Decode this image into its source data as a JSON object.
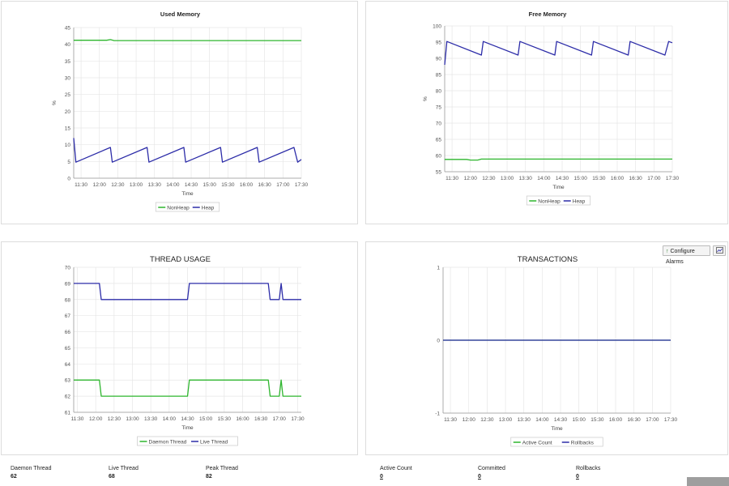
{
  "colors": {
    "green": "#2db52d",
    "blue": "#2c2ca8",
    "grid": "#e6e6e6",
    "axis": "#999999"
  },
  "toolbar": {
    "configure_alarms_label": "Configure Alarms",
    "alarm_icon": "alarm-icon",
    "export_icon": "chart-export-icon"
  },
  "stats": {
    "daemon_thread": {
      "label": "Daemon Thread",
      "value": "62"
    },
    "live_thread": {
      "label": "Live Thread",
      "value": "68"
    },
    "peak_thread": {
      "label": "Peak Thread",
      "value": "82"
    },
    "active_count": {
      "label": "Active Count",
      "value": "0"
    },
    "committed": {
      "label": "Committed",
      "value": "0"
    },
    "rollbacks": {
      "label": "Rollbacks",
      "value": "0"
    }
  },
  "chart_data": [
    {
      "id": "used",
      "type": "line",
      "title": "Used Memory",
      "title_bold": true,
      "xlabel": "Time",
      "ylabel": "%",
      "ylim": [
        0,
        45
      ],
      "yticks": [
        0,
        5,
        10,
        15,
        20,
        25,
        30,
        35,
        40,
        45
      ],
      "xlim": [
        0,
        62
      ],
      "x_tick_labels": [
        "11:30",
        "12:00",
        "12:30",
        "13:00",
        "13:30",
        "14:00",
        "14:30",
        "15:00",
        "15:30",
        "16:00",
        "16:30",
        "17:00",
        "17:30"
      ],
      "x_tick_positions": [
        2,
        7,
        12,
        17,
        22,
        27,
        32,
        37,
        42,
        47,
        52,
        57,
        62
      ],
      "legend": "bottom",
      "series": [
        {
          "name": "NonHeap",
          "color": "green",
          "points": [
            [
              0,
              41.2
            ],
            [
              9,
              41.2
            ],
            [
              10,
              41.4
            ],
            [
              11,
              41.1
            ],
            [
              62,
              41.1
            ]
          ]
        },
        {
          "name": "Heap",
          "color": "blue",
          "points": [
            [
              0,
              12.0
            ],
            [
              0.6,
              4.8
            ],
            [
              10,
              9.2
            ],
            [
              10.5,
              4.8
            ],
            [
              20,
              9.2
            ],
            [
              20.5,
              4.8
            ],
            [
              30,
              9.2
            ],
            [
              30.5,
              4.8
            ],
            [
              40,
              9.2
            ],
            [
              40.5,
              4.8
            ],
            [
              50,
              9.2
            ],
            [
              50.5,
              4.8
            ],
            [
              60,
              9.2
            ],
            [
              61,
              4.8
            ],
            [
              62,
              5.6
            ]
          ]
        }
      ]
    },
    {
      "id": "free",
      "type": "line",
      "title": "Free Memory",
      "title_bold": true,
      "xlabel": "Time",
      "ylabel": "%",
      "ylim": [
        55,
        100
      ],
      "yticks": [
        55,
        60,
        65,
        70,
        75,
        80,
        85,
        90,
        95,
        100
      ],
      "xlim": [
        0,
        62
      ],
      "x_tick_labels": [
        "11:30",
        "12:00",
        "12:30",
        "13:00",
        "13:30",
        "14:00",
        "14:30",
        "15:00",
        "15:30",
        "16:00",
        "16:30",
        "17:00",
        "17:30"
      ],
      "x_tick_positions": [
        2,
        7,
        12,
        17,
        22,
        27,
        32,
        37,
        42,
        47,
        52,
        57,
        62
      ],
      "legend": "bottom",
      "series": [
        {
          "name": "NonHeap",
          "color": "green",
          "points": [
            [
              0,
              58.8
            ],
            [
              6,
              58.8
            ],
            [
              7,
              58.6
            ],
            [
              9,
              58.6
            ],
            [
              10,
              58.9
            ],
            [
              62,
              58.9
            ]
          ]
        },
        {
          "name": "Heap",
          "color": "blue",
          "points": [
            [
              0,
              88
            ],
            [
              0.6,
              95.2
            ],
            [
              10,
              91.0
            ],
            [
              10.5,
              95.2
            ],
            [
              20,
              91.0
            ],
            [
              20.5,
              95.2
            ],
            [
              30,
              91.0
            ],
            [
              30.5,
              95.2
            ],
            [
              40,
              91.0
            ],
            [
              40.5,
              95.2
            ],
            [
              50,
              91.0
            ],
            [
              50.5,
              95.2
            ],
            [
              60,
              91.0
            ],
            [
              61,
              95.2
            ],
            [
              62,
              94.8
            ]
          ]
        }
      ]
    },
    {
      "id": "thread",
      "type": "line",
      "title": "THREAD USAGE",
      "title_bold": false,
      "xlabel": "Time",
      "ylabel": "",
      "ylim": [
        61,
        70
      ],
      "yticks": [
        61,
        62,
        63,
        64,
        65,
        66,
        67,
        68,
        69,
        70
      ],
      "xlim": [
        0,
        62
      ],
      "x_tick_labels": [
        "11:30",
        "12:00",
        "12:30",
        "13:00",
        "13:30",
        "14:00",
        "14:30",
        "15:00",
        "15:30",
        "16:00",
        "16:30",
        "17:00",
        "17:30"
      ],
      "x_tick_positions": [
        1,
        6,
        11,
        16,
        21,
        26,
        31,
        36,
        41,
        46,
        51,
        56,
        61
      ],
      "legend": "bottom",
      "series": [
        {
          "name": "Daemon Thread",
          "color": "green",
          "points": [
            [
              0,
              63
            ],
            [
              7,
              63
            ],
            [
              7.5,
              62
            ],
            [
              31,
              62
            ],
            [
              31.5,
              63
            ],
            [
              53,
              63
            ],
            [
              53.5,
              62
            ],
            [
              56,
              62
            ],
            [
              56.5,
              63
            ],
            [
              57,
              62
            ],
            [
              62,
              62
            ]
          ]
        },
        {
          "name": "Live Thread",
          "color": "blue",
          "points": [
            [
              0,
              69
            ],
            [
              7,
              69
            ],
            [
              7.5,
              68
            ],
            [
              31,
              68
            ],
            [
              31.5,
              69
            ],
            [
              53,
              69
            ],
            [
              53.5,
              68
            ],
            [
              56,
              68
            ],
            [
              56.5,
              69
            ],
            [
              57,
              68
            ],
            [
              62,
              68
            ]
          ]
        }
      ]
    },
    {
      "id": "tx",
      "type": "line",
      "title": "TRANSACTIONS",
      "title_bold": false,
      "xlabel": "Time",
      "ylabel": "",
      "ylim": [
        -1,
        1
      ],
      "yticks": [
        -1,
        0,
        1
      ],
      "xlim": [
        0,
        62
      ],
      "x_tick_labels": [
        "11:30",
        "12:00",
        "12:30",
        "13:00",
        "13:30",
        "14:00",
        "14:30",
        "15:00",
        "15:30",
        "16:00",
        "16:30",
        "17:00",
        "17:30"
      ],
      "x_tick_positions": [
        2,
        7,
        12,
        17,
        22,
        27,
        32,
        37,
        42,
        47,
        52,
        57,
        62
      ],
      "legend": "bottom",
      "series": [
        {
          "name": "Active Count",
          "color": "green",
          "points": [
            [
              0,
              0
            ],
            [
              62,
              0
            ]
          ]
        },
        {
          "name": "Rollbacks",
          "color": "blue",
          "points": [
            [
              0,
              0
            ],
            [
              62,
              0
            ]
          ]
        }
      ]
    }
  ]
}
